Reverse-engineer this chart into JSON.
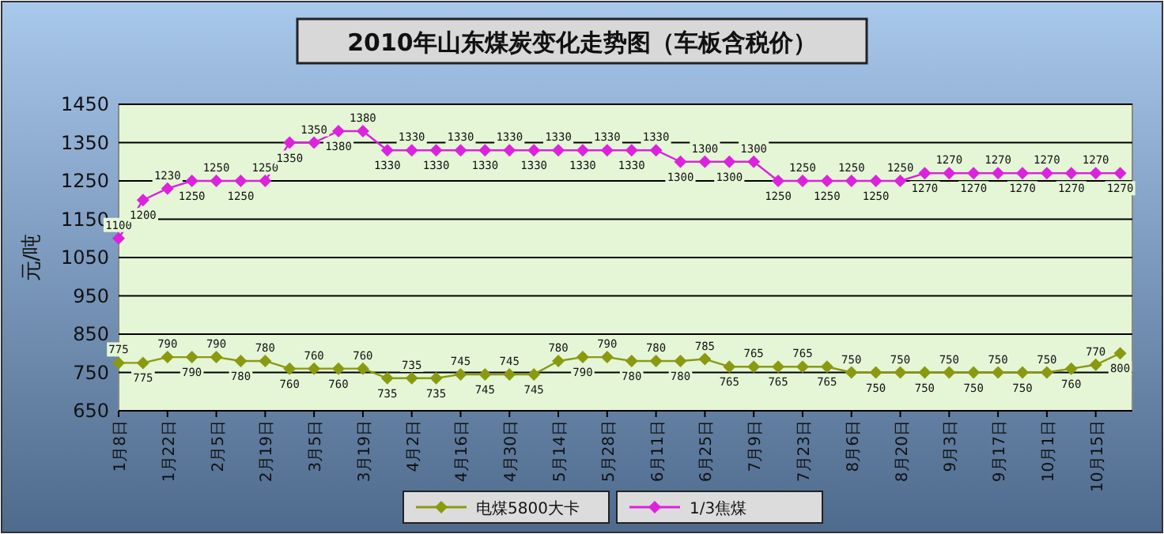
{
  "chart_data": {
    "type": "line",
    "title": "2010年山东煤炭变化走势图（车板含税价）",
    "ylabel": "元/吨",
    "categories": [
      "1月8日",
      null,
      "1月22日",
      null,
      "2月5日",
      null,
      "2月19日",
      null,
      "3月5日",
      null,
      "3月19日",
      null,
      "4月2日",
      null,
      "4月16日",
      null,
      "4月30日",
      null,
      "5月14日",
      null,
      "5月28日",
      null,
      "6月11日",
      null,
      "6月25日",
      null,
      "7月9日",
      null,
      "7月23日",
      null,
      "8月6日",
      null,
      "8月20日",
      null,
      "9月3日",
      null,
      "9月17日",
      null,
      "10月1日",
      null,
      "10月15日",
      null
    ],
    "series": [
      {
        "name": "电煤5800大卡",
        "color": "#8a9a10",
        "values": [
          775,
          775,
          790,
          790,
          790,
          780,
          780,
          760,
          760,
          760,
          760,
          735,
          735,
          735,
          745,
          745,
          745,
          745,
          780,
          790,
          790,
          780,
          780,
          780,
          785,
          765,
          765,
          765,
          765,
          765,
          750,
          750,
          750,
          750,
          750,
          750,
          750,
          750,
          750,
          760,
          770,
          800
        ]
      },
      {
        "name": "1/3焦煤",
        "color": "#dd22dd",
        "values": [
          1100,
          1200,
          1230,
          1250,
          1250,
          1250,
          1250,
          1350,
          1350,
          1380,
          1380,
          1330,
          1330,
          1330,
          1330,
          1330,
          1330,
          1330,
          1330,
          1330,
          1330,
          1330,
          1330,
          1300,
          1300,
          1300,
          1300,
          1250,
          1250,
          1250,
          1250,
          1250,
          1250,
          1270,
          1270,
          1270,
          1270,
          1270,
          1270,
          1270,
          1270,
          1270
        ]
      }
    ],
    "ylim": [
      650,
      1450
    ],
    "yticks": [
      650,
      750,
      850,
      950,
      1050,
      1150,
      1250,
      1350,
      1450
    ],
    "grid": "y",
    "legend": "bottom",
    "marker": "diamond",
    "data_labels": true
  }
}
